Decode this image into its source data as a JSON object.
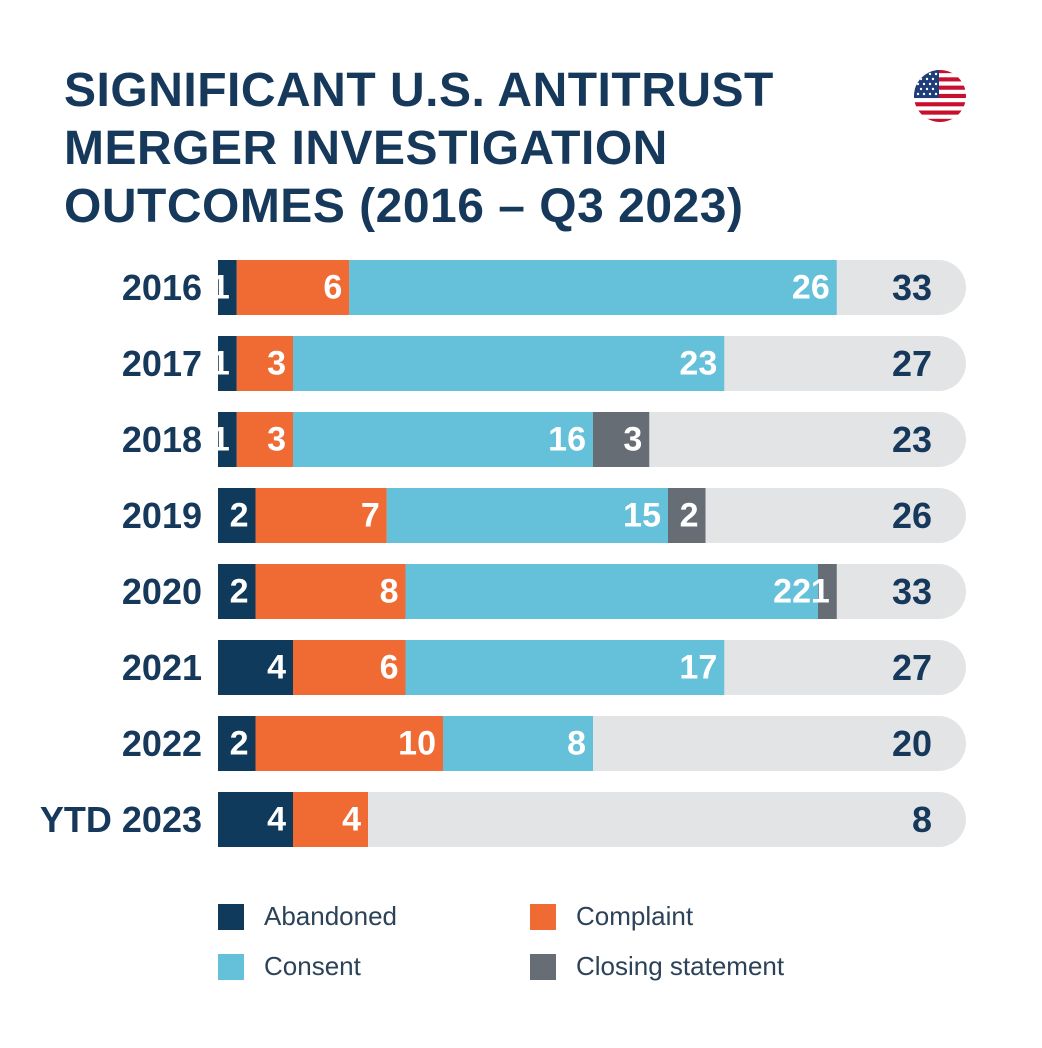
{
  "title_lines": [
    "SIGNIFICANT U.S. ANTITRUST",
    "MERGER INVESTIGATION",
    "OUTCOMES (2016 – Q3 2023)"
  ],
  "flag_icon": "us-flag-icon",
  "colors": {
    "abandoned": "#0f3a5c",
    "complaint": "#f06a33",
    "consent": "#65c1da",
    "closing_statement": "#666d75",
    "track": "#e3e4e6",
    "label": "#16385a"
  },
  "chart_data": {
    "type": "bar",
    "orientation": "horizontal",
    "stacked": true,
    "title": "SIGNIFICANT U.S. ANTITRUST MERGER INVESTIGATION OUTCOMES (2016 – Q3 2023)",
    "categories": [
      "2016",
      "2017",
      "2018",
      "2019",
      "2020",
      "2021",
      "2022",
      "YTD 2023"
    ],
    "series": [
      {
        "name": "Abandoned",
        "color": "#0f3a5c",
        "values": [
          1,
          1,
          1,
          2,
          2,
          4,
          2,
          4
        ]
      },
      {
        "name": "Complaint",
        "color": "#f06a33",
        "values": [
          6,
          3,
          3,
          7,
          8,
          6,
          10,
          4
        ]
      },
      {
        "name": "Consent",
        "color": "#65c1da",
        "values": [
          26,
          23,
          16,
          15,
          22,
          17,
          8,
          0
        ]
      },
      {
        "name": "Closing statement",
        "color": "#666d75",
        "values": [
          0,
          0,
          3,
          2,
          1,
          0,
          0,
          0
        ]
      }
    ],
    "totals": [
      33,
      27,
      23,
      26,
      33,
      27,
      20,
      8
    ],
    "xlim": [
      0,
      40
    ],
    "grid": false,
    "legend_position": "bottom"
  }
}
